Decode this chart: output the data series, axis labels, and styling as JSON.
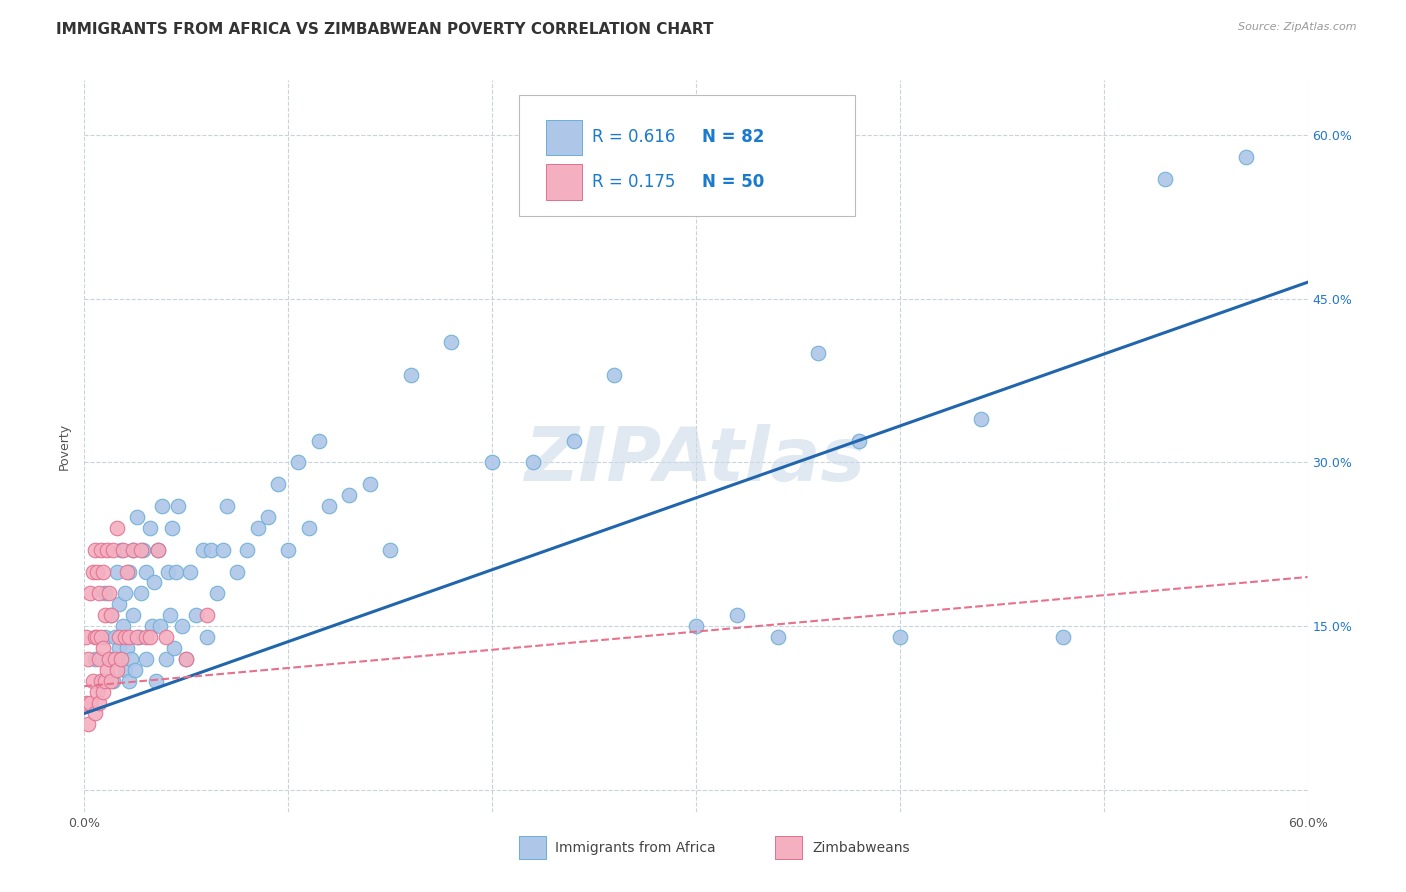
{
  "title": "IMMIGRANTS FROM AFRICA VS ZIMBABWEAN POVERTY CORRELATION CHART",
  "source": "Source: ZipAtlas.com",
  "ylabel": "Poverty",
  "xlim": [
    0.0,
    0.6
  ],
  "ylim": [
    -0.02,
    0.65
  ],
  "xticks": [
    0.0,
    0.1,
    0.2,
    0.3,
    0.4,
    0.5,
    0.6
  ],
  "xticklabels": [
    "0.0%",
    "",
    "",
    "",
    "",
    "",
    "60.0%"
  ],
  "yticks": [
    0.0,
    0.15,
    0.3,
    0.45,
    0.6
  ],
  "yticklabels_right": [
    "",
    "15.0%",
    "30.0%",
    "45.0%",
    "60.0%"
  ],
  "blue_scatter_x": [
    0.005,
    0.008,
    0.01,
    0.01,
    0.012,
    0.013,
    0.014,
    0.015,
    0.016,
    0.017,
    0.017,
    0.018,
    0.018,
    0.019,
    0.02,
    0.02,
    0.021,
    0.022,
    0.022,
    0.023,
    0.024,
    0.024,
    0.025,
    0.026,
    0.027,
    0.028,
    0.029,
    0.03,
    0.03,
    0.032,
    0.033,
    0.034,
    0.035,
    0.036,
    0.037,
    0.038,
    0.04,
    0.041,
    0.042,
    0.043,
    0.044,
    0.045,
    0.046,
    0.048,
    0.05,
    0.052,
    0.055,
    0.058,
    0.06,
    0.062,
    0.065,
    0.068,
    0.07,
    0.075,
    0.08,
    0.085,
    0.09,
    0.095,
    0.1,
    0.105,
    0.11,
    0.115,
    0.12,
    0.13,
    0.14,
    0.15,
    0.16,
    0.18,
    0.2,
    0.22,
    0.24,
    0.26,
    0.3,
    0.32,
    0.34,
    0.36,
    0.38,
    0.4,
    0.44,
    0.48,
    0.53,
    0.57
  ],
  "blue_scatter_y": [
    0.12,
    0.1,
    0.14,
    0.18,
    0.12,
    0.16,
    0.1,
    0.14,
    0.2,
    0.13,
    0.17,
    0.12,
    0.22,
    0.15,
    0.11,
    0.18,
    0.13,
    0.1,
    0.2,
    0.12,
    0.16,
    0.22,
    0.11,
    0.25,
    0.14,
    0.18,
    0.22,
    0.12,
    0.2,
    0.24,
    0.15,
    0.19,
    0.1,
    0.22,
    0.15,
    0.26,
    0.12,
    0.2,
    0.16,
    0.24,
    0.13,
    0.2,
    0.26,
    0.15,
    0.12,
    0.2,
    0.16,
    0.22,
    0.14,
    0.22,
    0.18,
    0.22,
    0.26,
    0.2,
    0.22,
    0.24,
    0.25,
    0.28,
    0.22,
    0.3,
    0.24,
    0.32,
    0.26,
    0.27,
    0.28,
    0.22,
    0.38,
    0.41,
    0.3,
    0.3,
    0.32,
    0.38,
    0.15,
    0.16,
    0.14,
    0.4,
    0.32,
    0.14,
    0.34,
    0.14,
    0.56,
    0.58
  ],
  "pink_scatter_x": [
    0.001,
    0.001,
    0.002,
    0.002,
    0.003,
    0.003,
    0.004,
    0.004,
    0.005,
    0.005,
    0.005,
    0.006,
    0.006,
    0.006,
    0.007,
    0.007,
    0.007,
    0.008,
    0.008,
    0.008,
    0.009,
    0.009,
    0.009,
    0.01,
    0.01,
    0.011,
    0.011,
    0.012,
    0.012,
    0.013,
    0.013,
    0.014,
    0.015,
    0.016,
    0.016,
    0.017,
    0.018,
    0.019,
    0.02,
    0.021,
    0.022,
    0.024,
    0.026,
    0.028,
    0.03,
    0.032,
    0.036,
    0.04,
    0.05,
    0.06
  ],
  "pink_scatter_y": [
    0.08,
    0.14,
    0.06,
    0.12,
    0.08,
    0.18,
    0.1,
    0.2,
    0.07,
    0.14,
    0.22,
    0.09,
    0.14,
    0.2,
    0.08,
    0.12,
    0.18,
    0.1,
    0.14,
    0.22,
    0.09,
    0.13,
    0.2,
    0.1,
    0.16,
    0.11,
    0.22,
    0.12,
    0.18,
    0.1,
    0.16,
    0.22,
    0.12,
    0.11,
    0.24,
    0.14,
    0.12,
    0.22,
    0.14,
    0.2,
    0.14,
    0.22,
    0.14,
    0.22,
    0.14,
    0.14,
    0.22,
    0.14,
    0.12,
    0.16
  ],
  "blue_line_x": [
    0.0,
    0.6
  ],
  "blue_line_y": [
    0.07,
    0.465
  ],
  "pink_line_x": [
    0.0,
    0.6
  ],
  "pink_line_y": [
    0.095,
    0.195
  ],
  "legend_r_blue": "R = 0.616",
  "legend_n_blue": "N = 82",
  "legend_r_pink": "R = 0.175",
  "legend_n_pink": "N = 50",
  "scatter_blue_color": "#aec6e8",
  "scatter_blue_edge": "#6aaed6",
  "scatter_pink_color": "#f4afc0",
  "scatter_pink_edge": "#e07090",
  "line_blue_color": "#2166ac",
  "line_pink_color": "#e8708a",
  "watermark_text": "ZIPAtlas",
  "watermark_color": "#c8d8e8",
  "background_color": "#ffffff",
  "grid_color": "#c8d4dc",
  "title_fontsize": 11,
  "axis_label_fontsize": 9,
  "tick_fontsize": 9,
  "legend_r_color": "#1a7acc",
  "legend_n_color": "#1a7acc",
  "legend_box_edge": "#bbbbbb"
}
